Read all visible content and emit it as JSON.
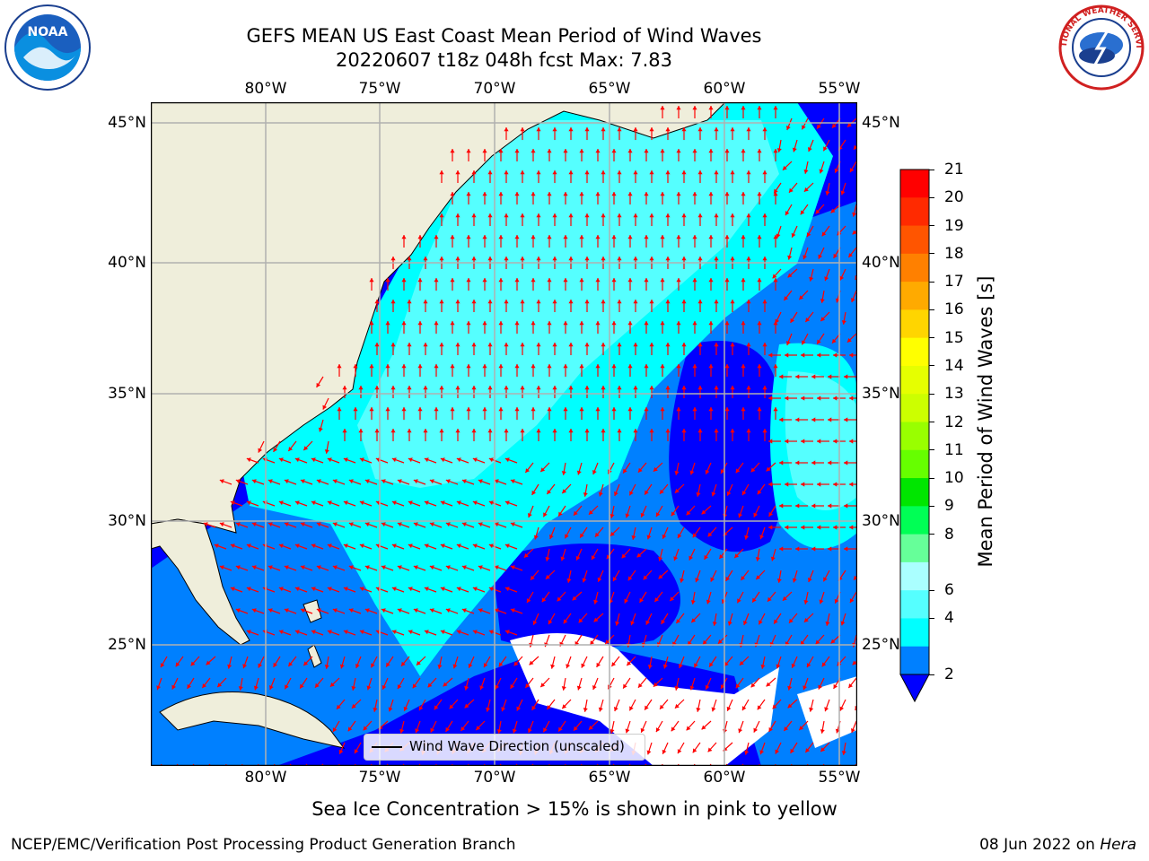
{
  "title": {
    "line1": "GEFS MEAN US East Coast Mean Period of Wind Waves",
    "line2": "20220607 t18z 048h fcst   Max: 7.83"
  },
  "logos": {
    "left": "NOAA",
    "right": "NATIONAL WEATHER SERVICE"
  },
  "map": {
    "lon_ticks": [
      "80°W",
      "75°W",
      "70°W",
      "65°W",
      "60°W",
      "55°W"
    ],
    "lat_ticks": [
      "45°N",
      "40°N",
      "35°N",
      "30°N",
      "25°N"
    ],
    "legend_label": "Wind Wave Direction (unscaled)"
  },
  "colorbar": {
    "label": "Mean Period of Wind Waves [s]",
    "ticks": [
      "21",
      "20",
      "19",
      "18",
      "17",
      "16",
      "15",
      "14",
      "13",
      "12",
      "11",
      "10",
      "9",
      "8",
      "6",
      "4",
      "2"
    ],
    "colors": [
      "#ff0000",
      "#ff2a00",
      "#ff5500",
      "#ff8000",
      "#ffaa00",
      "#ffd500",
      "#ffff00",
      "#e6ff00",
      "#ccff00",
      "#99ff00",
      "#66ff00",
      "#00e600",
      "#00ff55",
      "#66ff99",
      "#aaffff",
      "#55ffff",
      "#00ffff",
      "#0080ff"
    ],
    "under_color": "#0000ff"
  },
  "caption": "Sea Ice Concentration > 15% is shown in pink to yellow",
  "footer": {
    "left": "NCEP/EMC/Verification Post Processing Product Generation Branch",
    "right_date": "08 Jun 2022 on ",
    "right_host": "Hera"
  },
  "colors": {
    "land": "#efeedb",
    "ocean_2_4": "#0080ff",
    "ocean_4_6": "#00ffff",
    "ocean_6_8": "#55ffff",
    "ocean_below_2": "#0000ff",
    "arrow": "#ff0000"
  }
}
